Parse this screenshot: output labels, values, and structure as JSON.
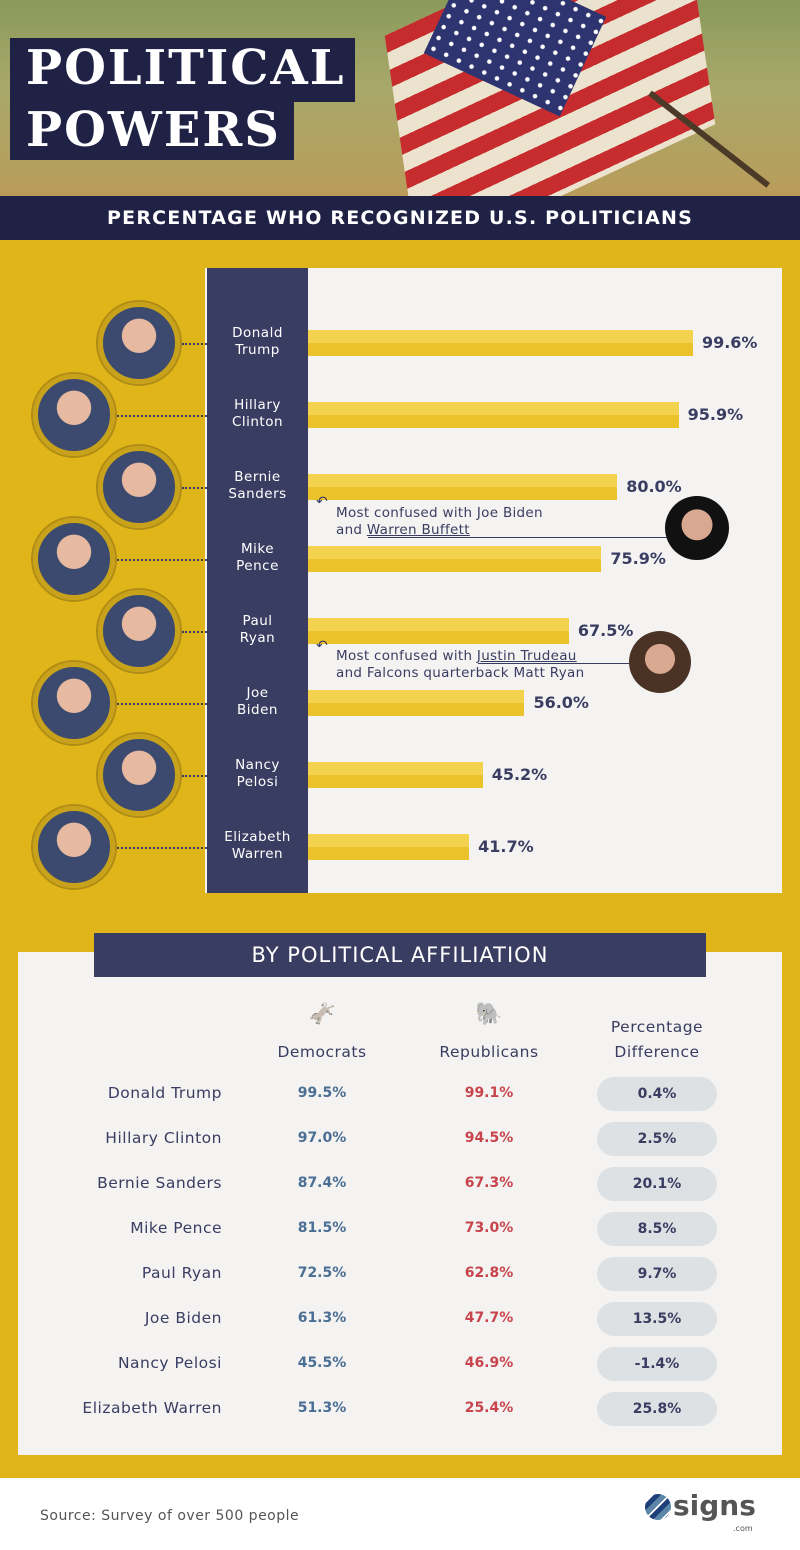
{
  "header": {
    "title_line1": "POLITICAL",
    "title_line2": "POWERS",
    "subtitle": "PERCENTAGE WHO RECOGNIZED U.S. POLITICIANS"
  },
  "chart_data": {
    "type": "bar",
    "title": "PERCENTAGE WHO RECOGNIZED U.S. POLITICIANS",
    "categories": [
      "Donald Trump",
      "Hillary Clinton",
      "Bernie Sanders",
      "Mike Pence",
      "Paul Ryan",
      "Joe Biden",
      "Nancy Pelosi",
      "Elizabeth Warren"
    ],
    "label_lines": [
      [
        "Donald",
        "Trump"
      ],
      [
        "Hillary",
        "Clinton"
      ],
      [
        "Bernie",
        "Sanders"
      ],
      [
        "Mike",
        "Pence"
      ],
      [
        "Paul",
        "Ryan"
      ],
      [
        "Joe",
        "Biden"
      ],
      [
        "Nancy",
        "Pelosi"
      ],
      [
        "Elizabeth",
        "Warren"
      ]
    ],
    "values": [
      99.6,
      95.9,
      80.0,
      75.9,
      67.5,
      56.0,
      45.2,
      41.7
    ],
    "value_labels": [
      "99.6%",
      "95.9%",
      "80.0%",
      "75.9%",
      "67.5%",
      "56.0%",
      "45.2%",
      "41.7%"
    ],
    "xlim": [
      0,
      100
    ],
    "annotations": [
      {
        "line1_pre": "Most confused with Joe Biden",
        "line2_pre": "and ",
        "line2_link": "Warren Buffett"
      },
      {
        "line1_pre": "Most confused with ",
        "line1_link": "Justin Trudeau",
        "line2_pre": "and Falcons quarterback Matt Ryan"
      }
    ]
  },
  "affiliation": {
    "title": "BY POLITICAL AFFILIATION",
    "col_dem": "Democrats",
    "col_rep": "Republicans",
    "col_diff_1": "Percentage",
    "col_diff_2": "Difference",
    "rows": [
      {
        "name": "Donald Trump",
        "dem": "99.5%",
        "rep": "99.1%",
        "diff": "0.4%"
      },
      {
        "name": "Hillary Clinton",
        "dem": "97.0%",
        "rep": "94.5%",
        "diff": "2.5%"
      },
      {
        "name": "Bernie Sanders",
        "dem": "87.4%",
        "rep": "67.3%",
        "diff": "20.1%"
      },
      {
        "name": "Mike Pence",
        "dem": "81.5%",
        "rep": "73.0%",
        "diff": "8.5%"
      },
      {
        "name": "Paul Ryan",
        "dem": "72.5%",
        "rep": "62.8%",
        "diff": "9.7%"
      },
      {
        "name": "Joe Biden",
        "dem": "61.3%",
        "rep": "47.7%",
        "diff": "13.5%"
      },
      {
        "name": "Nancy Pelosi",
        "dem": "45.5%",
        "rep": "46.9%",
        "diff": "-1.4%"
      },
      {
        "name": "Elizabeth Warren",
        "dem": "51.3%",
        "rep": "25.4%",
        "diff": "25.8%"
      }
    ]
  },
  "footer": {
    "source": "Source: Survey of over 500 people",
    "logo": "signs",
    "logo_sub": ".com"
  },
  "colors": {
    "navy": "#1f2145",
    "bar": "#ecc22a",
    "dem": "#4a6e94",
    "rep": "#c8444c"
  }
}
